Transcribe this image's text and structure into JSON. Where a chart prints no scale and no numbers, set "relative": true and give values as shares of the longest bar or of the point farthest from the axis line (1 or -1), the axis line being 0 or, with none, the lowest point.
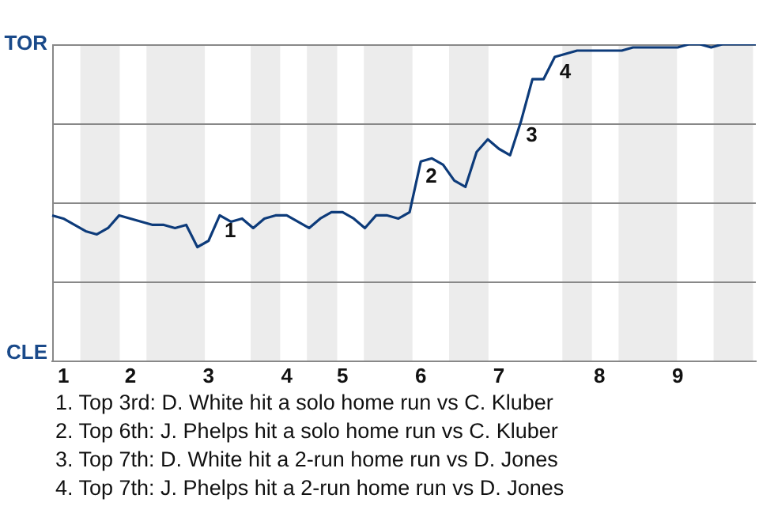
{
  "chart_data": {
    "type": "line",
    "relative": true,
    "categories": [
      null,
      "1",
      null,
      null,
      null,
      null,
      null,
      "2",
      null,
      null,
      null,
      null,
      null,
      null,
      "3",
      null,
      null,
      null,
      null,
      null,
      null,
      "4",
      null,
      null,
      null,
      null,
      "5",
      null,
      null,
      null,
      null,
      null,
      null,
      "6",
      null,
      null,
      null,
      null,
      null,
      null,
      "7",
      null,
      null,
      null,
      null,
      null,
      null,
      null,
      null,
      "8",
      null,
      null,
      null,
      null,
      null,
      null,
      "9",
      null,
      null,
      null,
      null,
      null,
      null,
      null
    ],
    "series": [
      {
        "color": "#0d3b7a",
        "values": [
          0.46,
          0.45,
          0.43,
          0.41,
          0.4,
          0.42,
          0.46,
          0.45,
          0.44,
          0.43,
          0.43,
          0.42,
          0.43,
          0.36,
          0.38,
          0.46,
          0.44,
          0.45,
          0.42,
          0.45,
          0.46,
          0.46,
          0.44,
          0.42,
          0.45,
          0.47,
          0.47,
          0.45,
          0.42,
          0.46,
          0.46,
          0.45,
          0.47,
          0.63,
          0.64,
          0.62,
          0.57,
          0.55,
          0.66,
          0.7,
          0.67,
          0.65,
          0.76,
          0.89,
          0.89,
          0.96,
          0.97,
          0.98,
          0.98,
          0.98,
          0.98,
          0.98,
          0.99,
          0.99,
          0.99,
          0.99,
          0.99,
          1.0,
          1.0,
          0.99,
          1.0,
          1.0,
          1.0,
          1.0
        ]
      }
    ],
    "grid": "y",
    "marker": "none",
    "annotations": [
      "TOR",
      "CLE",
      "1",
      "2",
      "3",
      "4",
      "1. Top 3rd: D. White hit a solo home run vs C. Kluber",
      "2. Top 6th: J. Phelps hit a solo home run vs C. Kluber",
      "3. Top 7th: D. White hit a 2-run home run vs D. Jones",
      "4. Top 7th: J. Phelps hit a 2-run home run vs D. Jones"
    ]
  }
}
